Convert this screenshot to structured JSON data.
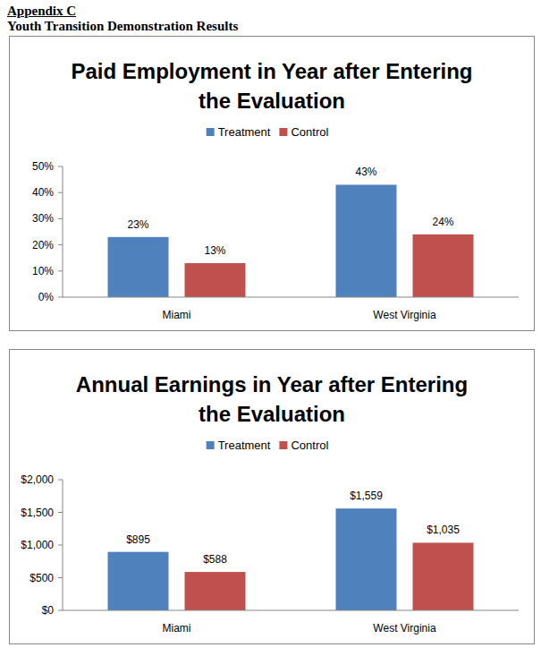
{
  "header": {
    "appendix": "Appendix C",
    "title": "Youth Transition Demonstration Results"
  },
  "chart_data": [
    {
      "type": "bar",
      "title": "Paid Employment in Year after Entering the Evaluation",
      "categories": [
        "Miami",
        "West Virginia"
      ],
      "series": [
        {
          "name": "Treatment",
          "color": "#4f81bd",
          "values": [
            23,
            43
          ],
          "value_labels": [
            "23%",
            "43%"
          ]
        },
        {
          "name": "Control",
          "color": "#c0504d",
          "values": [
            13,
            24
          ],
          "value_labels": [
            "13%",
            "24%"
          ]
        }
      ],
      "ylim": [
        0,
        50
      ],
      "yticks": [
        {
          "value": 0,
          "label": "0%"
        },
        {
          "value": 10,
          "label": "10%"
        },
        {
          "value": 20,
          "label": "20%"
        },
        {
          "value": 30,
          "label": "30%"
        },
        {
          "value": 40,
          "label": "40%"
        },
        {
          "value": 50,
          "label": "50%"
        }
      ],
      "grid": false,
      "legend": "top",
      "data_labels": true
    },
    {
      "type": "bar",
      "title": "Annual Earnings in Year after Entering the Evaluation",
      "categories": [
        "Miami",
        "West Virginia"
      ],
      "series": [
        {
          "name": "Treatment",
          "color": "#4f81bd",
          "values": [
            895,
            1559
          ],
          "value_labels": [
            "$895",
            "$1,559"
          ]
        },
        {
          "name": "Control",
          "color": "#c0504d",
          "values": [
            588,
            1035
          ],
          "value_labels": [
            "$588",
            "$1,035"
          ]
        }
      ],
      "ylim": [
        0,
        2000
      ],
      "yticks": [
        {
          "value": 0,
          "label": "$0"
        },
        {
          "value": 500,
          "label": "$500"
        },
        {
          "value": 1000,
          "label": "$1,000"
        },
        {
          "value": 1500,
          "label": "$1,500"
        },
        {
          "value": 2000,
          "label": "$2,000"
        }
      ],
      "grid": false,
      "legend": "top",
      "data_labels": true
    }
  ]
}
